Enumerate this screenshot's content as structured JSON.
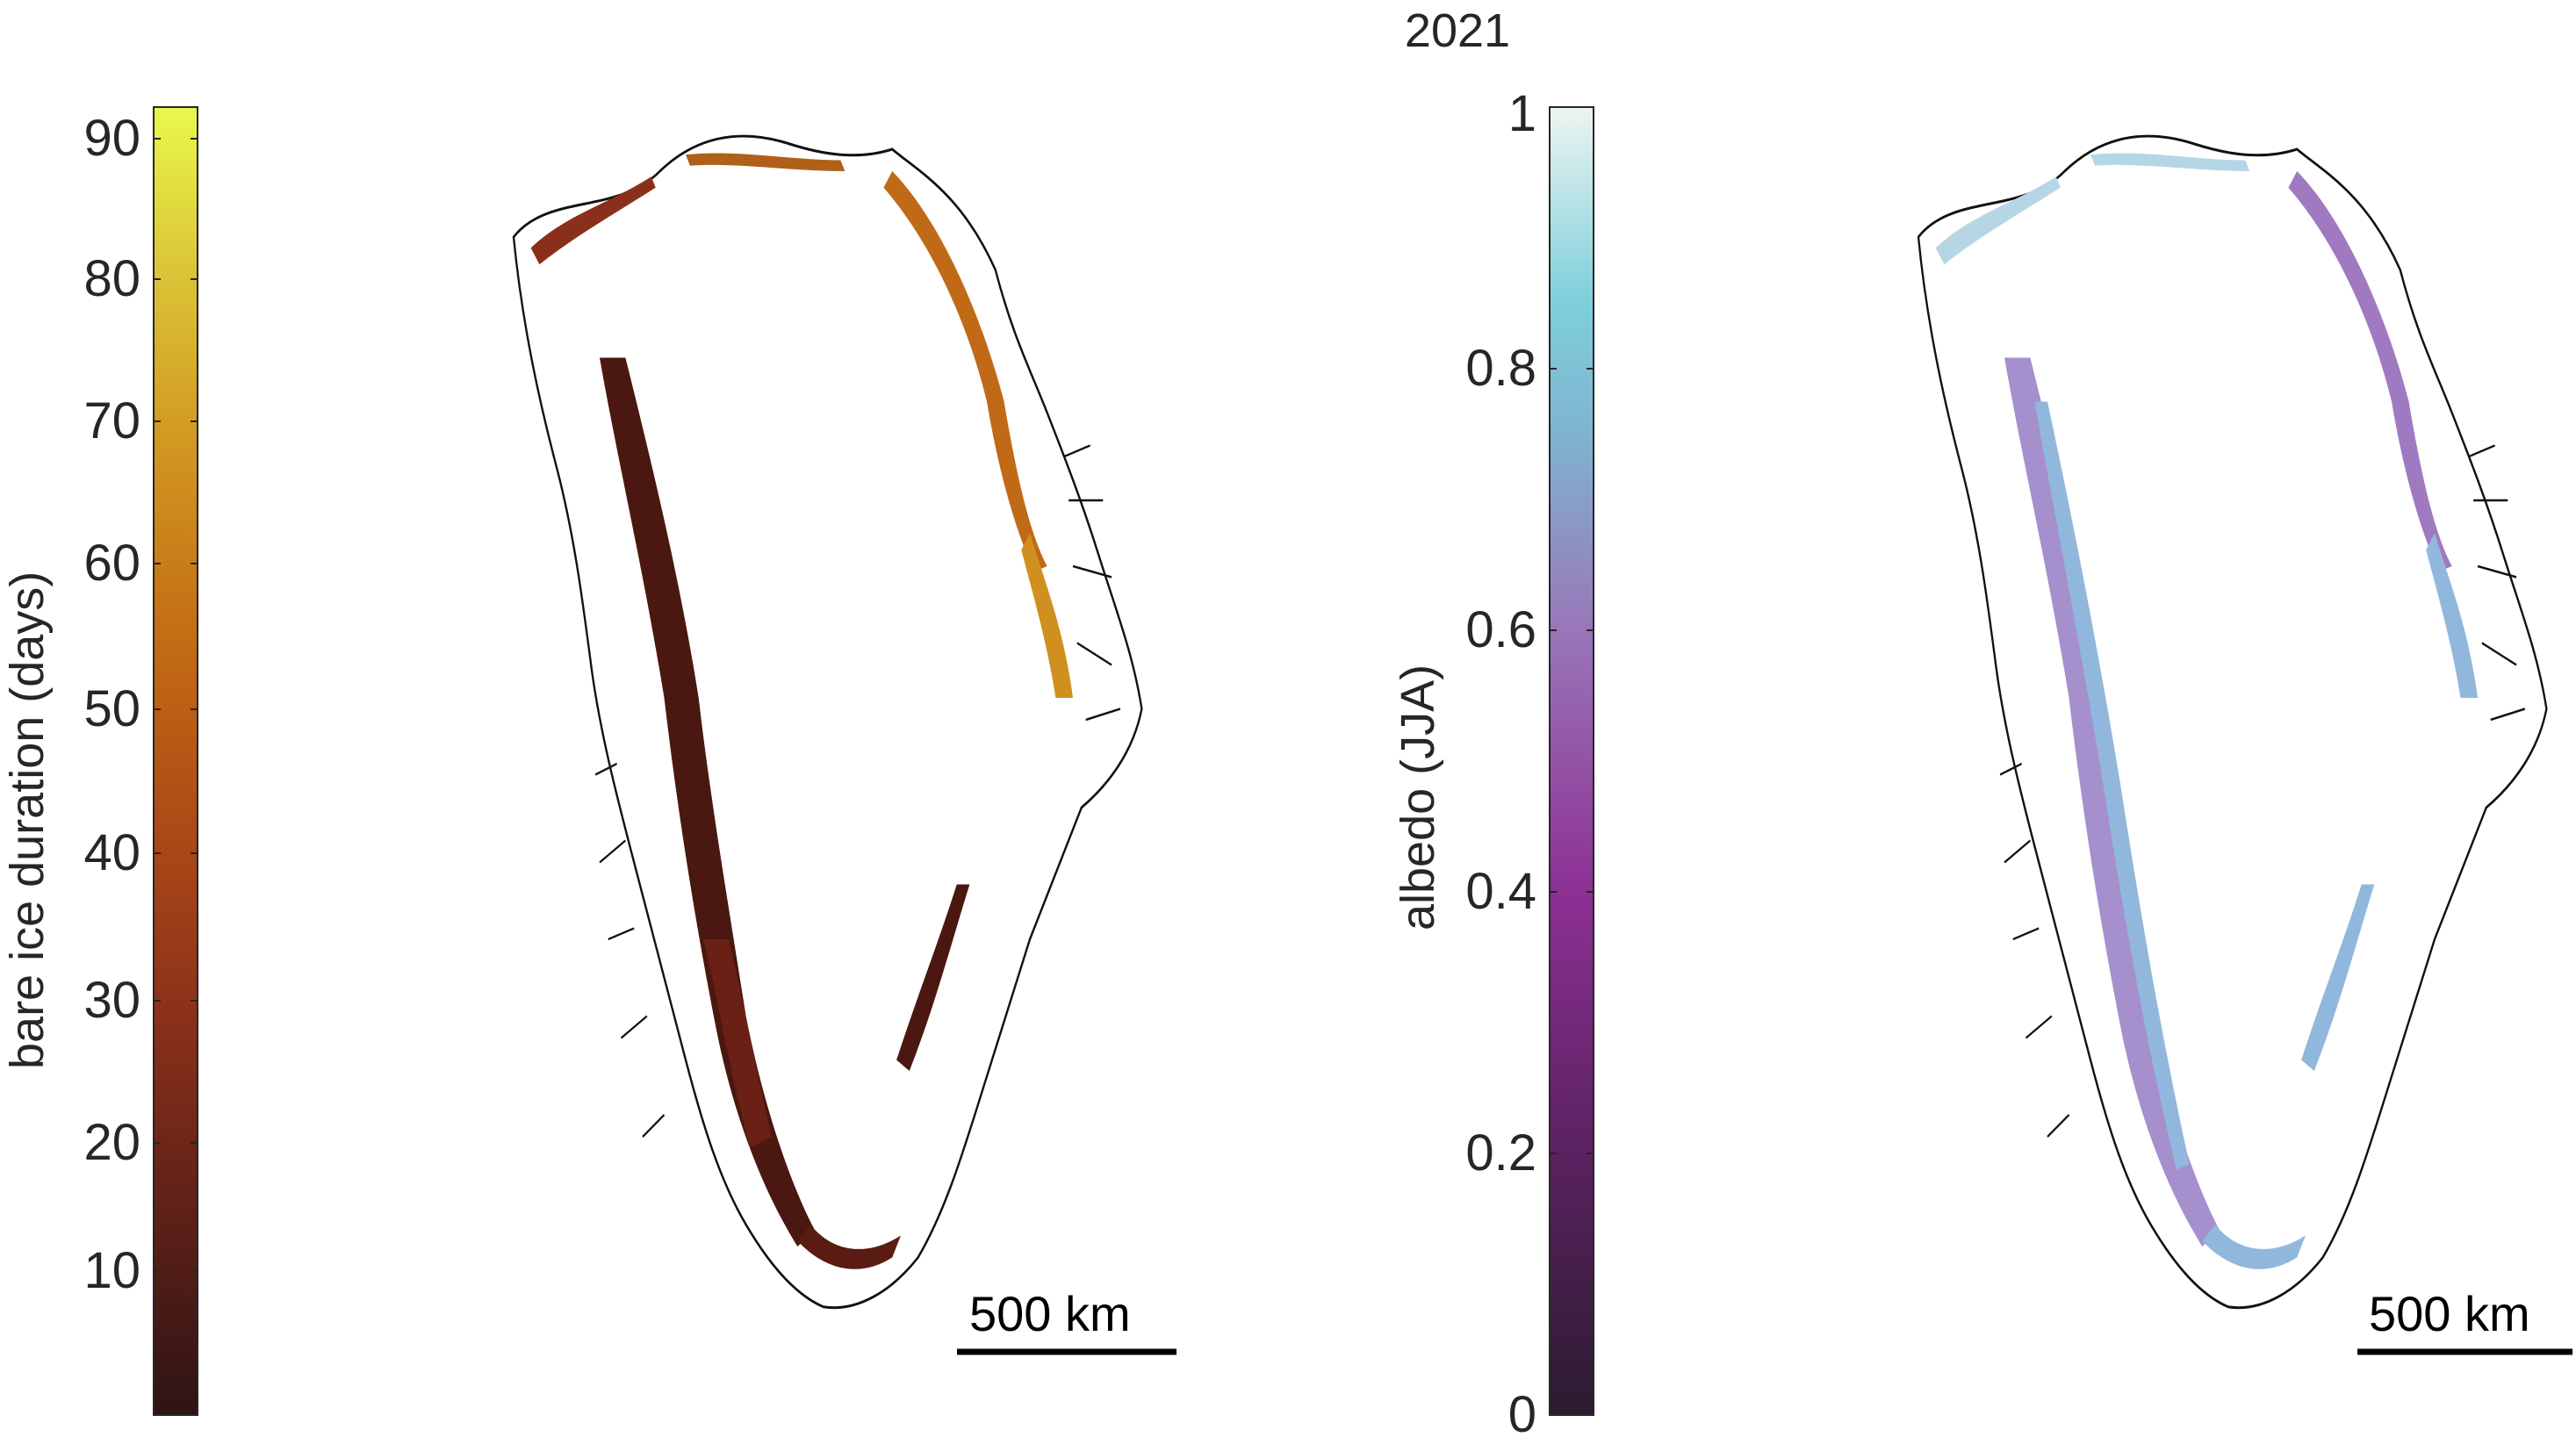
{
  "figure": {
    "year_title": "2021",
    "left_panel": {
      "colorbar": {
        "label": "bare ice duration (days)",
        "ticks": [
          "10",
          "20",
          "30",
          "40",
          "50",
          "60",
          "70",
          "80",
          "90"
        ],
        "colormap": [
          "#2e1414",
          "#5a1f17",
          "#8a301a",
          "#ad4a16",
          "#c46e14",
          "#d29a22",
          "#dcc638",
          "#e9f84a"
        ]
      },
      "scale_bar": {
        "label": "500 km"
      },
      "ice_color": [
        "#4a1810",
        "#7a2515",
        "#b8701a",
        "#e09020"
      ]
    },
    "right_panel": {
      "colorbar": {
        "label": "albedo (JJA)",
        "ticks": [
          "0",
          "0.2",
          "0.4",
          "0.6",
          "0.8",
          "1"
        ],
        "colormap": [
          "#2b1b30",
          "#5a2260",
          "#8c3094",
          "#9976b8",
          "#7fb4d0",
          "#7ecfdb",
          "#ecf4f1"
        ]
      },
      "scale_bar": {
        "label": "500 km"
      },
      "ice_color": [
        "#a58fcc",
        "#92b7dc",
        "#b6d6e6"
      ]
    }
  }
}
